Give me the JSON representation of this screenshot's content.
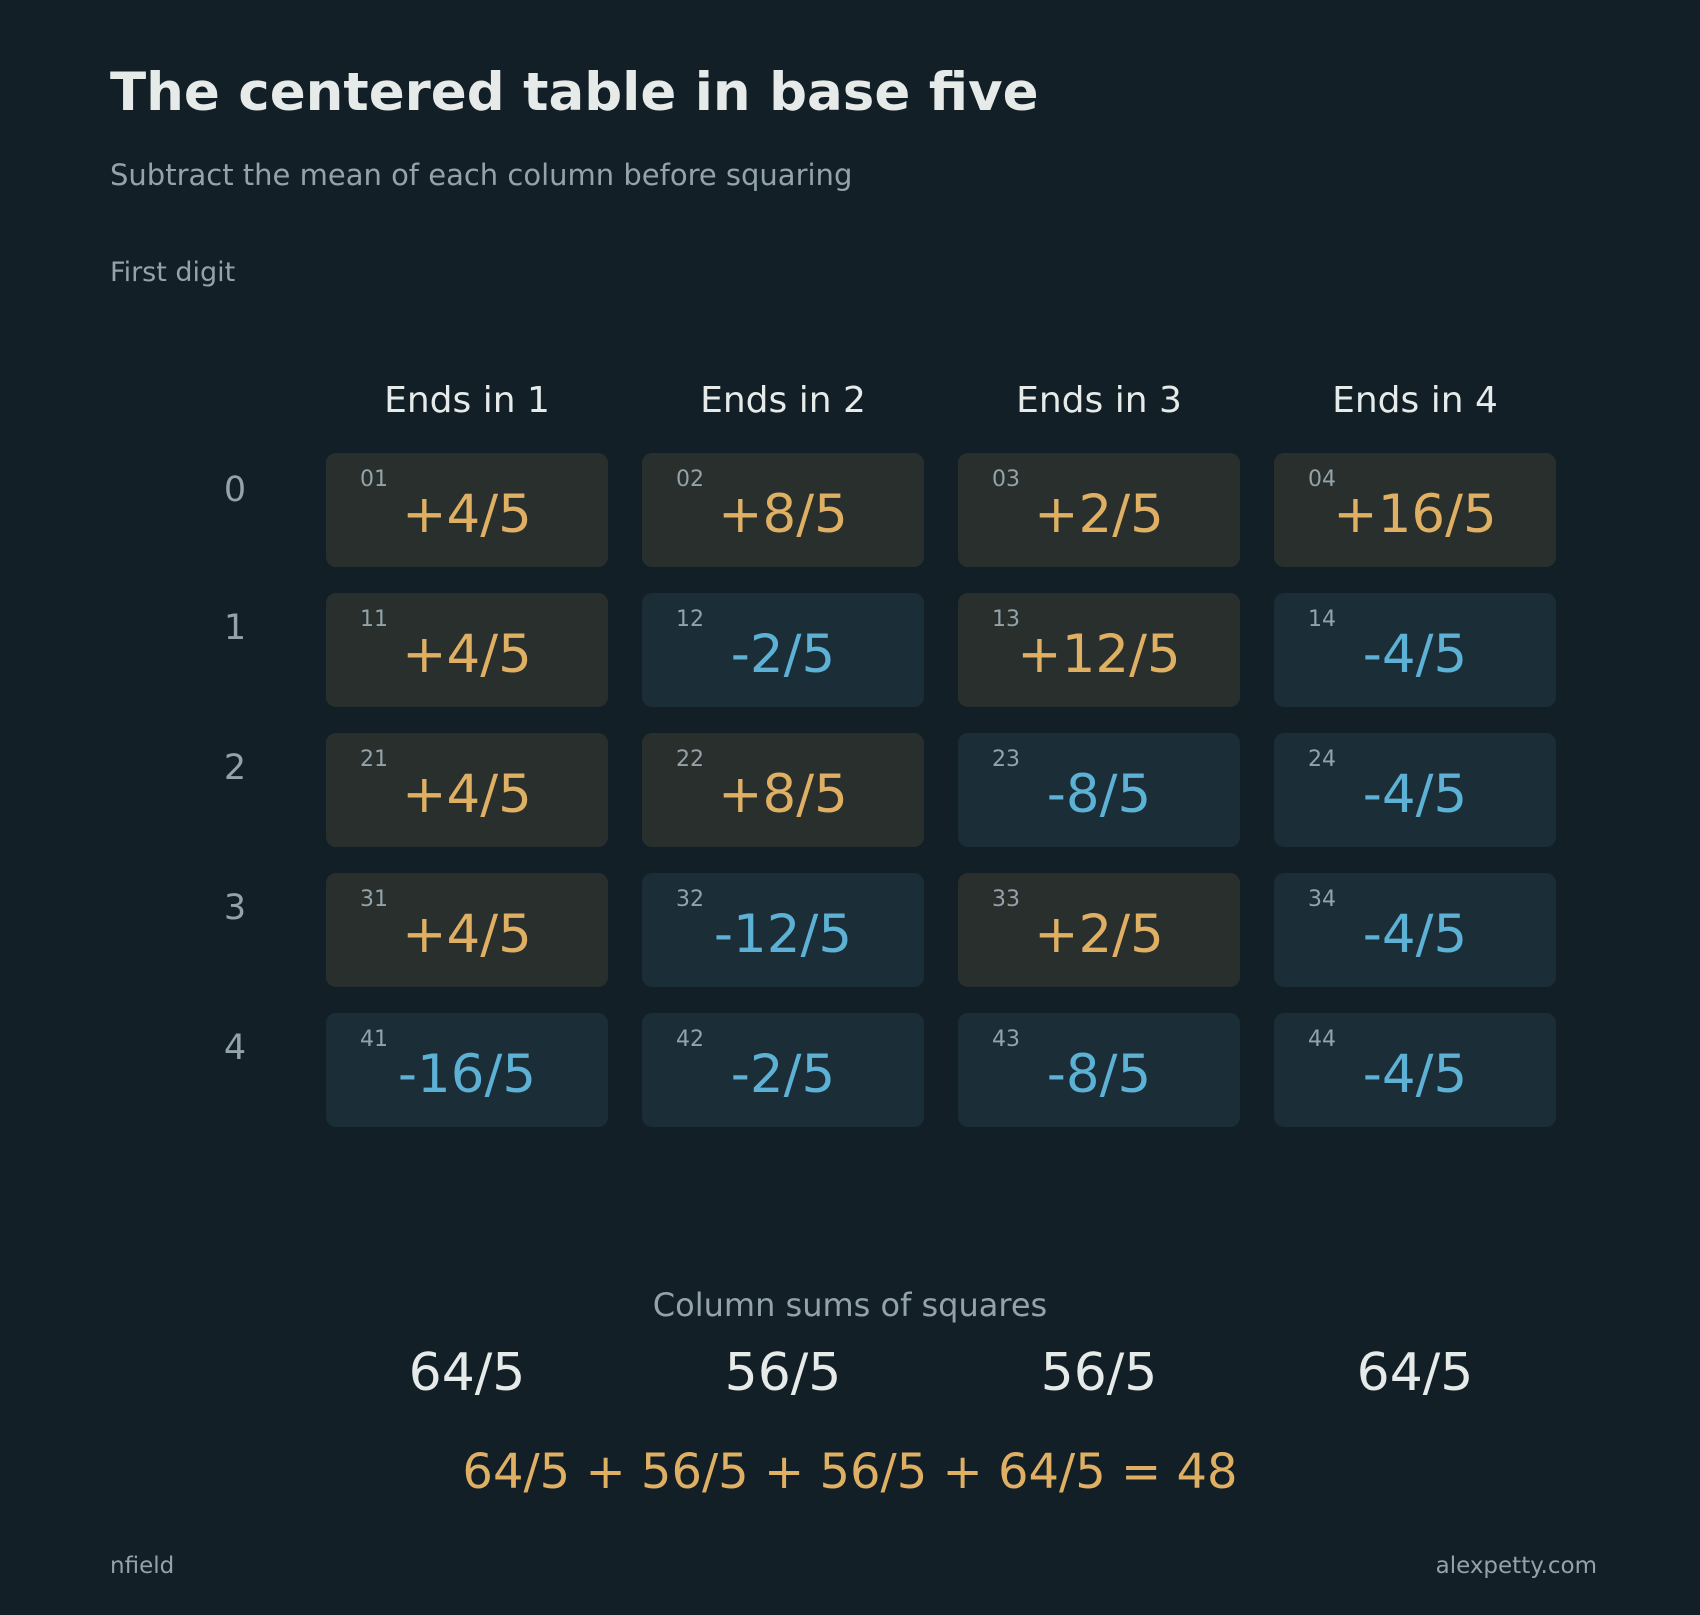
{
  "title": "The centered table in base five",
  "subtitle": "Subtract the mean of each column before squaring",
  "axis_label": "First digit",
  "columns": [
    "Ends in 1",
    "Ends in 2",
    "Ends in 3",
    "Ends in 4"
  ],
  "rows": [
    "0",
    "1",
    "2",
    "3",
    "4"
  ],
  "cells": [
    [
      {
        "id": "01",
        "value": "+4/5",
        "sign": "pos"
      },
      {
        "id": "02",
        "value": "+8/5",
        "sign": "pos"
      },
      {
        "id": "03",
        "value": "+2/5",
        "sign": "pos"
      },
      {
        "id": "04",
        "value": "+16/5",
        "sign": "pos"
      }
    ],
    [
      {
        "id": "11",
        "value": "+4/5",
        "sign": "pos"
      },
      {
        "id": "12",
        "value": "-2/5",
        "sign": "neg"
      },
      {
        "id": "13",
        "value": "+12/5",
        "sign": "pos"
      },
      {
        "id": "14",
        "value": "-4/5",
        "sign": "neg"
      }
    ],
    [
      {
        "id": "21",
        "value": "+4/5",
        "sign": "pos"
      },
      {
        "id": "22",
        "value": "+8/5",
        "sign": "pos"
      },
      {
        "id": "23",
        "value": "-8/5",
        "sign": "neg"
      },
      {
        "id": "24",
        "value": "-4/5",
        "sign": "neg"
      }
    ],
    [
      {
        "id": "31",
        "value": "+4/5",
        "sign": "pos"
      },
      {
        "id": "32",
        "value": "-12/5",
        "sign": "neg"
      },
      {
        "id": "33",
        "value": "+2/5",
        "sign": "pos"
      },
      {
        "id": "34",
        "value": "-4/5",
        "sign": "neg"
      }
    ],
    [
      {
        "id": "41",
        "value": "-16/5",
        "sign": "neg"
      },
      {
        "id": "42",
        "value": "-2/5",
        "sign": "neg"
      },
      {
        "id": "43",
        "value": "-8/5",
        "sign": "neg"
      },
      {
        "id": "44",
        "value": "-4/5",
        "sign": "neg"
      }
    ]
  ],
  "sums_heading": "Column sums of squares",
  "sums": [
    "64/5",
    "56/5",
    "56/5",
    "64/5"
  ],
  "equation": "64/5 + 56/5 + 56/5 + 64/5 = 48",
  "footer": {
    "left": "nfield",
    "right": "alexpetty.com"
  },
  "colors": {
    "background": "#121f26",
    "positive_text": "#dfb064",
    "negative_text": "#5cb1d4",
    "positive_cell": "#292f2c",
    "negative_cell": "#1b2d37",
    "muted_text": "#93a3a9",
    "primary_text": "#e6ebe9"
  }
}
